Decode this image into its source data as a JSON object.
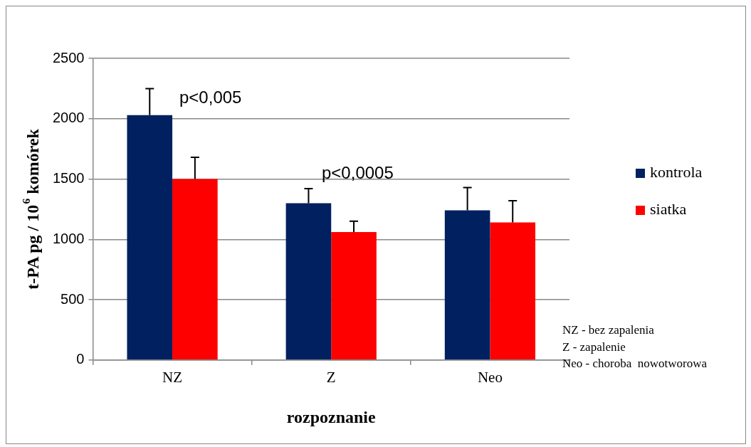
{
  "chart_data": {
    "type": "bar",
    "xlabel": "rozpoznanie",
    "ylabel": "t-PA pg / 10$^{6}$ komórek",
    "categories": [
      "NZ",
      "Z",
      "Neo"
    ],
    "series": [
      {
        "name": "kontrola",
        "color": "#002060",
        "values": [
          2030,
          1300,
          1240
        ],
        "errors": [
          [
            2030,
            2250
          ],
          [
            1300,
            1420
          ],
          [
            1240,
            1430
          ]
        ]
      },
      {
        "name": "siatka",
        "color": "#ff0000",
        "values": [
          1500,
          1060,
          1140
        ],
        "errors": [
          [
            1500,
            1680
          ],
          [
            1060,
            1150
          ],
          [
            1140,
            1320
          ]
        ]
      }
    ],
    "ylim": [
      0,
      2500
    ],
    "yticks": [
      0,
      500,
      1000,
      1500,
      2000,
      2500
    ],
    "grid": "y",
    "legend": "right",
    "annotations": [
      "p<0,005",
      "p<0,0005",
      "NZ - bez zapalenia",
      "Z - zapalenie",
      "Neo - choroba  nowotworowa"
    ]
  }
}
